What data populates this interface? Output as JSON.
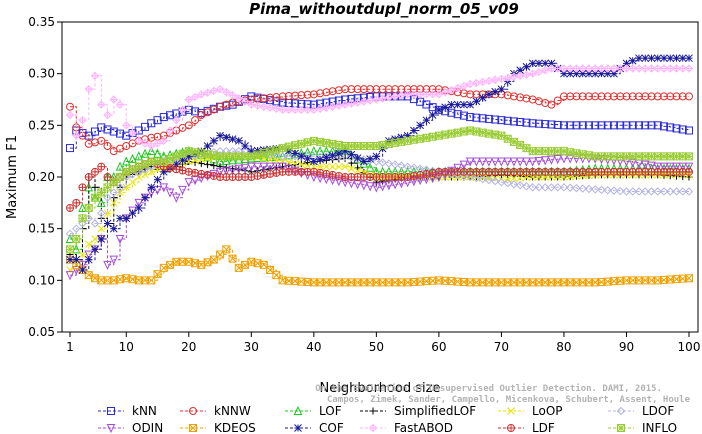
{
  "chart_data": {
    "type": "line",
    "title": "Pima_withoutdupl_norm_05_v09",
    "xlabel": "Neighborhood size",
    "ylabel": "Maximum F1",
    "xlim": [
      0,
      100
    ],
    "ylim": [
      0.05,
      0.35
    ],
    "x_ticks": [
      1,
      10,
      20,
      30,
      40,
      50,
      60,
      70,
      80,
      90,
      100
    ],
    "y_ticks": [
      "0.05",
      "0.10",
      "0.15",
      "0.20",
      "0.25",
      "0.30",
      "0.35"
    ],
    "grid": false,
    "legend_position": "bottom",
    "watermark": [
      "Campos, Zimek, Sander, Campello, Micenkova, Schubert, Assent, Houle",
      "On the Evaluation of Unsupervised Outlier Detection. DAMI, 2015."
    ],
    "series": [
      {
        "name": "kNN",
        "color": "#2b2bd4",
        "marker": "square",
        "x": [
          1,
          2,
          4,
          6,
          8,
          10,
          12,
          14,
          16,
          20,
          22,
          25,
          27,
          30,
          35,
          40,
          45,
          50,
          55,
          60,
          65,
          70,
          75,
          80,
          85,
          90,
          95,
          100
        ],
        "y": [
          0.228,
          0.245,
          0.24,
          0.248,
          0.244,
          0.24,
          0.245,
          0.252,
          0.258,
          0.265,
          0.262,
          0.268,
          0.27,
          0.278,
          0.272,
          0.27,
          0.275,
          0.278,
          0.278,
          0.265,
          0.258,
          0.255,
          0.252,
          0.25,
          0.25,
          0.25,
          0.25,
          0.245
        ]
      },
      {
        "name": "kNNW",
        "color": "#e03030",
        "marker": "circle",
        "x": [
          1,
          2,
          4,
          6,
          8,
          10,
          12,
          14,
          16,
          20,
          22,
          25,
          27,
          30,
          35,
          40,
          45,
          50,
          55,
          60,
          65,
          70,
          75,
          78,
          80,
          85,
          90,
          95,
          100
        ],
        "y": [
          0.268,
          0.248,
          0.232,
          0.235,
          0.225,
          0.23,
          0.235,
          0.238,
          0.24,
          0.25,
          0.26,
          0.268,
          0.272,
          0.275,
          0.278,
          0.28,
          0.285,
          0.285,
          0.285,
          0.285,
          0.28,
          0.28,
          0.275,
          0.27,
          0.278,
          0.278,
          0.278,
          0.278,
          0.278
        ]
      },
      {
        "name": "LOF",
        "color": "#1ec81e",
        "marker": "triangle-up",
        "x": [
          1,
          2,
          3,
          4,
          5,
          6,
          7,
          8,
          9,
          10,
          12,
          14,
          16,
          20,
          25,
          30,
          35,
          40,
          45,
          50,
          55,
          60,
          65,
          70,
          75,
          80,
          85,
          90,
          95,
          100
        ],
        "y": [
          0.14,
          0.13,
          0.17,
          0.19,
          0.18,
          0.175,
          0.2,
          0.2,
          0.21,
          0.215,
          0.22,
          0.225,
          0.22,
          0.225,
          0.215,
          0.218,
          0.22,
          0.225,
          0.225,
          0.205,
          0.205,
          0.205,
          0.205,
          0.205,
          0.205,
          0.205,
          0.208,
          0.208,
          0.208,
          0.208
        ]
      },
      {
        "name": "SimplifiedLOF",
        "color": "#000000",
        "marker": "plus",
        "x": [
          1,
          2,
          3,
          4,
          5,
          6,
          7,
          8,
          9,
          10,
          12,
          14,
          16,
          20,
          25,
          30,
          35,
          40,
          45,
          50,
          55,
          60,
          65,
          70,
          75,
          80,
          85,
          90,
          95,
          100
        ],
        "y": [
          0.125,
          0.12,
          0.15,
          0.2,
          0.19,
          0.16,
          0.155,
          0.18,
          0.19,
          0.2,
          0.205,
          0.21,
          0.205,
          0.215,
          0.21,
          0.205,
          0.21,
          0.215,
          0.218,
          0.195,
          0.2,
          0.2,
          0.2,
          0.202,
          0.2,
          0.2,
          0.202,
          0.202,
          0.202,
          0.2
        ]
      },
      {
        "name": "LoOP",
        "color": "#e6e600",
        "marker": "cross",
        "x": [
          1,
          2,
          3,
          4,
          5,
          6,
          7,
          8,
          9,
          10,
          12,
          14,
          16,
          20,
          25,
          30,
          35,
          40,
          45,
          50,
          55,
          60,
          65,
          70,
          75,
          80,
          85,
          90,
          95,
          100
        ],
        "y": [
          0.11,
          0.115,
          0.125,
          0.135,
          0.14,
          0.15,
          0.165,
          0.175,
          0.185,
          0.19,
          0.2,
          0.205,
          0.21,
          0.215,
          0.22,
          0.22,
          0.215,
          0.21,
          0.21,
          0.2,
          0.2,
          0.2,
          0.2,
          0.198,
          0.2,
          0.2,
          0.202,
          0.202,
          0.202,
          0.202
        ]
      },
      {
        "name": "LDOF",
        "color": "#b3b3e6",
        "marker": "diamond",
        "x": [
          1,
          2,
          3,
          4,
          5,
          6,
          7,
          8,
          9,
          10,
          12,
          14,
          16,
          20,
          25,
          30,
          35,
          40,
          45,
          50,
          55,
          60,
          65,
          70,
          75,
          80,
          85,
          90,
          95,
          100
        ],
        "y": [
          0.145,
          0.15,
          0.155,
          0.16,
          0.155,
          0.165,
          0.18,
          0.185,
          0.19,
          0.2,
          0.205,
          0.21,
          0.215,
          0.22,
          0.225,
          0.225,
          0.22,
          0.22,
          0.22,
          0.215,
          0.21,
          0.205,
          0.2,
          0.195,
          0.19,
          0.19,
          0.188,
          0.186,
          0.186,
          0.186
        ]
      },
      {
        "name": "ODIN",
        "color": "#a64dd9",
        "marker": "triangle-down",
        "x": [
          1,
          2,
          3,
          4,
          5,
          6,
          7,
          8,
          9,
          10,
          12,
          14,
          16,
          18,
          20,
          25,
          30,
          35,
          40,
          45,
          50,
          55,
          60,
          65,
          70,
          75,
          80,
          85,
          90,
          95,
          100
        ],
        "y": [
          0.105,
          0.11,
          0.115,
          0.125,
          0.13,
          0.14,
          0.115,
          0.12,
          0.14,
          0.16,
          0.175,
          0.185,
          0.19,
          0.18,
          0.195,
          0.205,
          0.21,
          0.21,
          0.2,
          0.195,
          0.19,
          0.195,
          0.2,
          0.215,
          0.215,
          0.215,
          0.218,
          0.218,
          0.215,
          0.21,
          0.21
        ]
      },
      {
        "name": "KDEOS",
        "color": "#f0a000",
        "marker": "square-x",
        "x": [
          1,
          2,
          3,
          4,
          5,
          6,
          8,
          10,
          12,
          14,
          16,
          18,
          20,
          22,
          24,
          26,
          28,
          30,
          32,
          35,
          40,
          45,
          50,
          55,
          60,
          65,
          70,
          75,
          80,
          85,
          90,
          95,
          100
        ],
        "y": [
          0.12,
          0.115,
          0.11,
          0.105,
          0.102,
          0.1,
          0.1,
          0.102,
          0.1,
          0.1,
          0.112,
          0.118,
          0.118,
          0.115,
          0.12,
          0.13,
          0.112,
          0.118,
          0.115,
          0.1,
          0.098,
          0.098,
          0.098,
          0.098,
          0.1,
          0.098,
          0.098,
          0.098,
          0.098,
          0.098,
          0.1,
          0.1,
          0.102
        ]
      },
      {
        "name": "COF",
        "color": "#1a1a99",
        "marker": "asterisk",
        "x": [
          1,
          2,
          3,
          4,
          5,
          6,
          7,
          8,
          9,
          10,
          12,
          14,
          16,
          20,
          22,
          25,
          28,
          30,
          35,
          40,
          45,
          48,
          50,
          52,
          55,
          58,
          60,
          62,
          65,
          68,
          70,
          72,
          75,
          78,
          80,
          85,
          88,
          90,
          92,
          95,
          98,
          100
        ],
        "y": [
          0.12,
          0.12,
          0.11,
          0.12,
          0.13,
          0.14,
          0.155,
          0.15,
          0.16,
          0.16,
          0.17,
          0.19,
          0.205,
          0.22,
          0.225,
          0.24,
          0.235,
          0.225,
          0.228,
          0.215,
          0.225,
          0.215,
          0.22,
          0.235,
          0.24,
          0.255,
          0.265,
          0.27,
          0.27,
          0.28,
          0.285,
          0.3,
          0.31,
          0.31,
          0.3,
          0.3,
          0.3,
          0.31,
          0.315,
          0.315,
          0.315,
          0.315
        ]
      },
      {
        "name": "FastABOD",
        "color": "#ffb3ff",
        "marker": "diamond-x",
        "x": [
          1,
          2,
          3,
          4,
          5,
          6,
          7,
          8,
          9,
          10,
          12,
          14,
          16,
          20,
          22,
          25,
          30,
          35,
          40,
          45,
          50,
          55,
          60,
          65,
          70,
          75,
          78,
          80,
          85,
          90,
          95,
          100
        ],
        "y": [
          0.26,
          0.24,
          0.255,
          0.285,
          0.298,
          0.27,
          0.26,
          0.275,
          0.27,
          0.25,
          0.235,
          0.23,
          0.235,
          0.275,
          0.28,
          0.285,
          0.27,
          0.265,
          0.265,
          0.27,
          0.275,
          0.28,
          0.28,
          0.29,
          0.295,
          0.3,
          0.305,
          0.305,
          0.305,
          0.305,
          0.305,
          0.305
        ]
      },
      {
        "name": "LDF",
        "color": "#cc3333",
        "marker": "circle-plus",
        "x": [
          1,
          2,
          3,
          4,
          5,
          6,
          7,
          8,
          9,
          10,
          12,
          14,
          16,
          20,
          25,
          30,
          35,
          40,
          45,
          50,
          55,
          60,
          65,
          70,
          75,
          80,
          85,
          90,
          95,
          100
        ],
        "y": [
          0.17,
          0.175,
          0.19,
          0.2,
          0.205,
          0.21,
          0.2,
          0.195,
          0.2,
          0.205,
          0.21,
          0.215,
          0.21,
          0.205,
          0.2,
          0.2,
          0.205,
          0.205,
          0.2,
          0.2,
          0.2,
          0.205,
          0.205,
          0.205,
          0.205,
          0.205,
          0.205,
          0.205,
          0.205,
          0.205
        ]
      },
      {
        "name": "INFLO",
        "color": "#99cc33",
        "marker": "star",
        "x": [
          1,
          2,
          3,
          4,
          5,
          6,
          7,
          8,
          9,
          10,
          12,
          14,
          16,
          20,
          25,
          30,
          35,
          40,
          45,
          50,
          55,
          60,
          65,
          70,
          75,
          80,
          85,
          90,
          95,
          100
        ],
        "y": [
          0.13,
          0.14,
          0.16,
          0.17,
          0.18,
          0.185,
          0.19,
          0.195,
          0.2,
          0.205,
          0.21,
          0.215,
          0.215,
          0.225,
          0.22,
          0.22,
          0.228,
          0.235,
          0.23,
          0.23,
          0.235,
          0.24,
          0.245,
          0.24,
          0.225,
          0.225,
          0.22,
          0.22,
          0.22,
          0.22
        ]
      }
    ]
  }
}
